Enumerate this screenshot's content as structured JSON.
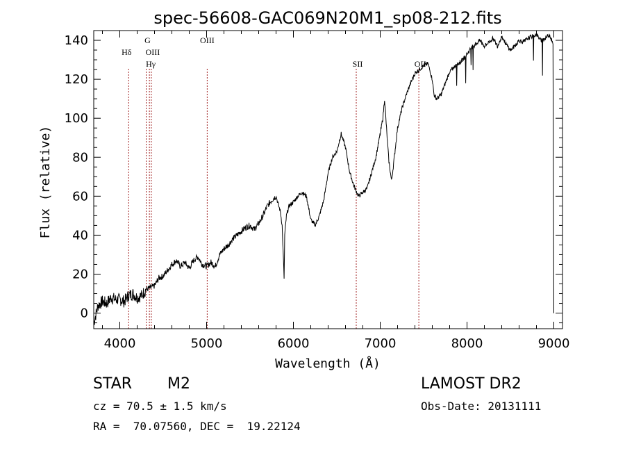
{
  "chart_data": {
    "type": "line",
    "title": "spec-56608-GAC069N20M1_sp08-212.fits",
    "xlabel": "Wavelength (Å)",
    "ylabel": "Flux (relative)",
    "xlim": [
      3700,
      9100
    ],
    "ylim": [
      -8,
      145
    ],
    "x_ticks": [
      4000,
      5000,
      6000,
      7000,
      8000,
      9000
    ],
    "y_ticks": [
      0,
      20,
      40,
      60,
      80,
      100,
      120,
      140
    ],
    "x_tick_labels": [
      "4000",
      "5000",
      "6000",
      "7000",
      "8000",
      "9000"
    ],
    "y_tick_labels": [
      "0",
      "20",
      "40",
      "60",
      "80",
      "100",
      "120",
      "140"
    ],
    "series": [
      {
        "name": "spectrum",
        "x": [
          3700,
          3750,
          3800,
          3850,
          3900,
          3950,
          4000,
          4050,
          4100,
          4150,
          4200,
          4250,
          4300,
          4350,
          4400,
          4450,
          4500,
          4550,
          4600,
          4650,
          4700,
          4750,
          4800,
          4850,
          4900,
          4950,
          5000,
          5050,
          5100,
          5150,
          5200,
          5250,
          5300,
          5350,
          5400,
          5450,
          5500,
          5550,
          5600,
          5650,
          5700,
          5750,
          5800,
          5850,
          5870,
          5893,
          5900,
          5920,
          5950,
          6000,
          6050,
          6100,
          6150,
          6200,
          6250,
          6300,
          6350,
          6400,
          6450,
          6500,
          6550,
          6600,
          6650,
          6700,
          6750,
          6800,
          6850,
          6900,
          6950,
          7000,
          7030,
          7050,
          7080,
          7100,
          7130,
          7150,
          7200,
          7250,
          7300,
          7350,
          7400,
          7450,
          7500,
          7550,
          7600,
          7620,
          7650,
          7700,
          7750,
          7800,
          7850,
          7900,
          7950,
          8000,
          8050,
          8100,
          8150,
          8200,
          8250,
          8300,
          8350,
          8400,
          8450,
          8500,
          8550,
          8600,
          8650,
          8700,
          8750,
          8800,
          8850,
          8900,
          8950,
          8990,
          9000
        ],
        "values": [
          -5,
          4,
          6,
          5,
          8,
          7,
          7,
          6,
          9,
          10,
          8,
          9,
          12,
          13,
          14,
          18,
          19,
          22,
          25,
          27,
          24,
          26,
          23,
          27,
          29,
          25,
          24,
          26,
          24,
          30,
          33,
          35,
          38,
          40,
          42,
          44,
          45,
          43,
          46,
          50,
          55,
          58,
          60,
          52,
          45,
          18,
          40,
          50,
          55,
          57,
          60,
          62,
          60,
          48,
          45,
          50,
          58,
          72,
          80,
          83,
          92,
          85,
          72,
          65,
          60,
          62,
          64,
          72,
          80,
          92,
          100,
          110,
          90,
          78,
          68,
          75,
          95,
          105,
          112,
          118,
          123,
          125,
          127,
          128,
          120,
          112,
          110,
          112,
          118,
          124,
          126,
          128,
          130,
          133,
          136,
          138,
          140,
          137,
          139,
          141,
          137,
          142,
          138,
          135,
          137,
          140,
          139,
          141,
          142,
          143,
          140,
          141,
          143,
          138,
          0
        ]
      }
    ],
    "line_markers": [
      {
        "label": "Hδ",
        "x": 4102
      },
      {
        "label": "G",
        "x": 4304
      },
      {
        "label": "OIII",
        "x": 4363
      },
      {
        "label": "Hγ",
        "x": 4341
      },
      {
        "label": "OIII",
        "x": 5007
      },
      {
        "label": "SII",
        "x": 6724
      },
      {
        "label": "OII",
        "x": 7445
      }
    ]
  },
  "info": {
    "object_class": "STAR",
    "subclass": "M2",
    "survey": "LAMOST DR2",
    "redshift_line": "cz = 70.5 ± 1.5 km/s",
    "obs_date_line": "Obs-Date: 20131111",
    "coords_line": "RA =  70.07560, DEC =  19.22124"
  },
  "colors": {
    "spectrum": "#000000",
    "marker_line": "#a02020",
    "axes": "#000000"
  }
}
